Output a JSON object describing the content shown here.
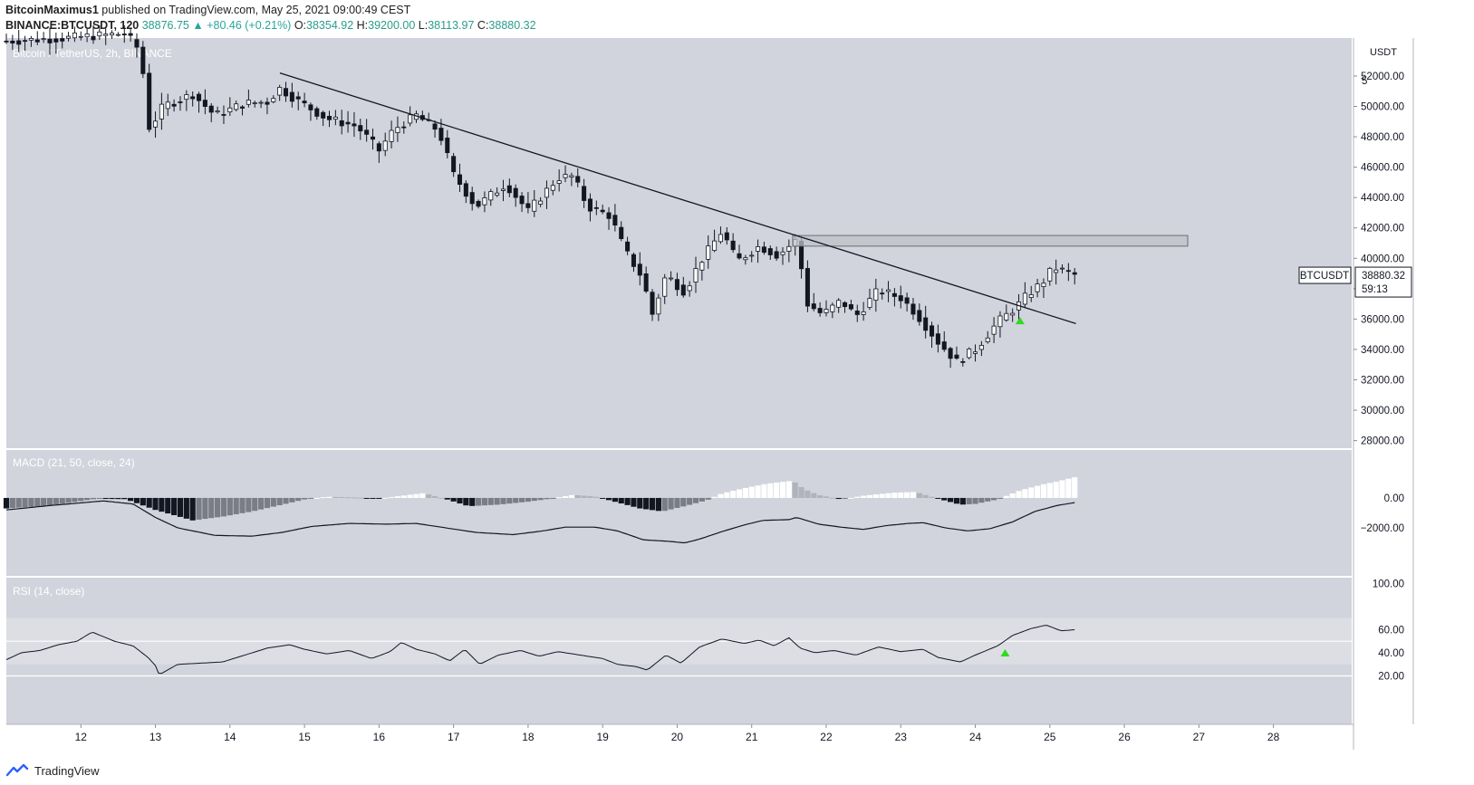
{
  "header": {
    "author": "BitcoinMaximus1",
    "published_text": "published on TradingView.com, May 25, 2021 09:00:49 CEST",
    "symbol_line": "BINANCE:BTCUSDT, 120",
    "last_price": "38876.75",
    "change_arrow": "▲",
    "change": "+80.46 (+0.21%)",
    "o_label": "O:",
    "o": "38354.92",
    "h_label": "H:",
    "h": "39200.00",
    "l_label": "L:",
    "l": "38113.97",
    "c_label": "C:",
    "c": "38880.32"
  },
  "footer": {
    "brand": "TradingView"
  },
  "colors": {
    "panel_bg": "#d1d4dc",
    "rsi_band": "#dcdee4",
    "candle_up": "#ffffff",
    "candle_down": "#131722",
    "green_marker": "#2edb1f",
    "hist_black": "#131722",
    "hist_gray": "#7a7d86",
    "hist_white": "#ffffff",
    "hist_lightgray": "#b0b3bb"
  },
  "chart_data": [
    {
      "type": "candlestick",
      "title": "Bitcoin / TetherUS, 2h, BINANCE",
      "currency": "USDT",
      "y_axis_top_label": "5",
      "price_range": [
        27500,
        54500
      ],
      "y_ticks": [
        28000,
        30000,
        32000,
        34000,
        36000,
        38000,
        40000,
        42000,
        44000,
        46000,
        48000,
        50000,
        52000
      ],
      "y_tick_labels": [
        "28000.00",
        "30000.00",
        "32000.00",
        "34000.00",
        "36000.00",
        "38000.00",
        "40000.00",
        "42000.00",
        "44000.00",
        "46000.00",
        "48000.00",
        "50000.00",
        "52000.00"
      ],
      "x_range": [
        11.0,
        29.05
      ],
      "x_ticks": [
        12,
        13,
        14,
        15,
        16,
        17,
        18,
        19,
        20,
        21,
        22,
        23,
        24,
        25,
        26,
        27,
        28
      ],
      "x_tick_labels": [
        "12",
        "13",
        "14",
        "15",
        "16",
        "17",
        "18",
        "19",
        "20",
        "21",
        "22",
        "23",
        "24",
        "25",
        "26",
        "27",
        "28"
      ],
      "last_price_label": {
        "symbol": "BTCUSDT",
        "price": "38880.32",
        "countdown": "59:13",
        "value": 38880.32
      },
      "trendline": {
        "start": [
          14.67,
          52200
        ],
        "end": [
          25.35,
          35700
        ]
      },
      "resistance_zone": {
        "x_start": 21.55,
        "x_end": 26.85,
        "y_low": 40800,
        "y_high": 41500
      },
      "breakout_marker": {
        "x": 24.6,
        "value": 35900
      },
      "candle_keypoints": [
        [
          11.0,
          54300
        ],
        [
          11.8,
          54500
        ],
        [
          12.6,
          54800
        ],
        [
          12.8,
          53600
        ],
        [
          12.92,
          48500
        ],
        [
          13.1,
          50000
        ],
        [
          13.5,
          50800
        ],
        [
          13.8,
          49400
        ],
        [
          14.2,
          50200
        ],
        [
          14.5,
          50300
        ],
        [
          14.67,
          51200
        ],
        [
          14.9,
          50400
        ],
        [
          15.3,
          49200
        ],
        [
          15.7,
          48700
        ],
        [
          16.0,
          47100
        ],
        [
          16.2,
          48500
        ],
        [
          16.5,
          49400
        ],
        [
          16.8,
          48400
        ],
        [
          17.0,
          45500
        ],
        [
          17.3,
          43400
        ],
        [
          17.7,
          44900
        ],
        [
          18.0,
          43100
        ],
        [
          18.4,
          45300
        ],
        [
          18.6,
          45400
        ],
        [
          18.8,
          43400
        ],
        [
          19.1,
          42800
        ],
        [
          19.3,
          40500
        ],
        [
          19.55,
          38600
        ],
        [
          19.65,
          36100
        ],
        [
          19.85,
          38900
        ],
        [
          20.1,
          37800
        ],
        [
          20.3,
          39700
        ],
        [
          20.6,
          41800
        ],
        [
          20.8,
          39800
        ],
        [
          21.1,
          40800
        ],
        [
          21.35,
          40200
        ],
        [
          21.6,
          41200
        ],
        [
          21.75,
          37000
        ],
        [
          21.95,
          36300
        ],
        [
          22.2,
          37200
        ],
        [
          22.4,
          36200
        ],
        [
          22.7,
          37900
        ],
        [
          23.0,
          37400
        ],
        [
          23.2,
          36400
        ],
        [
          23.5,
          34500
        ],
        [
          23.75,
          33200
        ],
        [
          24.0,
          34000
        ],
        [
          24.3,
          35800
        ],
        [
          24.55,
          36800
        ],
        [
          24.7,
          37600
        ],
        [
          24.9,
          38400
        ],
        [
          25.05,
          39400
        ],
        [
          25.35,
          38880
        ]
      ]
    },
    {
      "type": "histogram+line",
      "title": "MACD (21, 50, close, 24)",
      "value_range": [
        -5200,
        3200
      ],
      "y_ticks": [
        0,
        -2000
      ],
      "y_tick_labels": [
        "0.00",
        "−2000.00"
      ],
      "macd_keypoints": [
        [
          11.0,
          -800
        ],
        [
          11.6,
          -500
        ],
        [
          12.3,
          -200
        ],
        [
          12.7,
          -400
        ],
        [
          13.0,
          -1300
        ],
        [
          13.3,
          -2000
        ],
        [
          13.8,
          -2500
        ],
        [
          14.3,
          -2550
        ],
        [
          14.7,
          -2300
        ],
        [
          15.1,
          -1900
        ],
        [
          15.6,
          -1700
        ],
        [
          16.1,
          -1750
        ],
        [
          16.5,
          -1700
        ],
        [
          16.9,
          -2000
        ],
        [
          17.3,
          -2300
        ],
        [
          17.8,
          -2450
        ],
        [
          18.2,
          -2200
        ],
        [
          18.5,
          -1950
        ],
        [
          18.9,
          -1950
        ],
        [
          19.2,
          -2200
        ],
        [
          19.55,
          -2800
        ],
        [
          19.9,
          -2900
        ],
        [
          20.1,
          -3000
        ],
        [
          20.3,
          -2750
        ],
        [
          20.6,
          -2250
        ],
        [
          20.9,
          -1800
        ],
        [
          21.15,
          -1500
        ],
        [
          21.5,
          -1450
        ],
        [
          21.6,
          -1300
        ],
        [
          21.9,
          -1750
        ],
        [
          22.2,
          -1950
        ],
        [
          22.5,
          -2100
        ],
        [
          22.8,
          -1850
        ],
        [
          23.1,
          -1700
        ],
        [
          23.3,
          -1650
        ],
        [
          23.6,
          -2000
        ],
        [
          23.9,
          -2200
        ],
        [
          24.2,
          -2050
        ],
        [
          24.5,
          -1600
        ],
        [
          24.8,
          -900
        ],
        [
          25.1,
          -500
        ],
        [
          25.35,
          -300
        ]
      ],
      "histogram_keypoints": [
        [
          11.0,
          -700
        ],
        [
          11.6,
          -500
        ],
        [
          12.2,
          -60
        ],
        [
          12.6,
          -80
        ],
        [
          13.0,
          -800
        ],
        [
          13.5,
          -1500
        ],
        [
          13.9,
          -1250
        ],
        [
          14.3,
          -900
        ],
        [
          14.7,
          -450
        ],
        [
          15.0,
          -100
        ],
        [
          15.3,
          80
        ],
        [
          15.7,
          30
        ],
        [
          16.0,
          -40
        ],
        [
          16.4,
          200
        ],
        [
          16.6,
          320
        ],
        [
          16.9,
          -80
        ],
        [
          17.2,
          -550
        ],
        [
          17.6,
          -450
        ],
        [
          18.0,
          -250
        ],
        [
          18.3,
          -50
        ],
        [
          18.6,
          200
        ],
        [
          18.9,
          100
        ],
        [
          19.2,
          -300
        ],
        [
          19.5,
          -700
        ],
        [
          19.8,
          -900
        ],
        [
          20.1,
          -550
        ],
        [
          20.4,
          -150
        ],
        [
          20.6,
          300
        ],
        [
          20.9,
          650
        ],
        [
          21.2,
          950
        ],
        [
          21.55,
          1150
        ],
        [
          21.7,
          600
        ],
        [
          21.9,
          200
        ],
        [
          22.2,
          -100
        ],
        [
          22.5,
          150
        ],
        [
          22.9,
          350
        ],
        [
          23.2,
          400
        ],
        [
          23.5,
          -50
        ],
        [
          23.8,
          -450
        ],
        [
          24.0,
          -400
        ],
        [
          24.3,
          -100
        ],
        [
          24.6,
          500
        ],
        [
          24.9,
          900
        ],
        [
          25.1,
          1100
        ],
        [
          25.35,
          1400
        ]
      ]
    },
    {
      "type": "line",
      "title": "RSI (14, close)",
      "value_range": [
        0,
        105
      ],
      "y_ticks": [
        100,
        60,
        40,
        20
      ],
      "y_tick_labels": [
        "100.00",
        "60.00",
        "40.00",
        "20.00"
      ],
      "bands": [
        30,
        70
      ],
      "levels": [
        50,
        20
      ],
      "rsi_keypoints": [
        [
          11.0,
          34
        ],
        [
          11.2,
          40
        ],
        [
          11.45,
          42
        ],
        [
          11.7,
          47
        ],
        [
          11.95,
          50
        ],
        [
          12.15,
          58
        ],
        [
          12.45,
          50
        ],
        [
          12.7,
          46
        ],
        [
          12.9,
          36
        ],
        [
          13.0,
          29
        ],
        [
          13.05,
          21
        ],
        [
          13.3,
          30
        ],
        [
          13.6,
          31
        ],
        [
          13.9,
          32
        ],
        [
          14.2,
          38
        ],
        [
          14.5,
          44
        ],
        [
          14.8,
          47
        ],
        [
          15.0,
          43
        ],
        [
          15.3,
          39
        ],
        [
          15.6,
          42
        ],
        [
          15.9,
          35
        ],
        [
          16.15,
          41
        ],
        [
          16.3,
          49
        ],
        [
          16.5,
          43
        ],
        [
          16.75,
          39
        ],
        [
          16.95,
          33
        ],
        [
          17.15,
          43
        ],
        [
          17.35,
          30
        ],
        [
          17.6,
          38
        ],
        [
          17.9,
          42
        ],
        [
          18.15,
          37
        ],
        [
          18.4,
          41
        ],
        [
          18.7,
          38
        ],
        [
          19.0,
          35
        ],
        [
          19.2,
          30
        ],
        [
          19.45,
          28
        ],
        [
          19.6,
          25
        ],
        [
          19.85,
          38
        ],
        [
          20.05,
          31
        ],
        [
          20.3,
          45
        ],
        [
          20.6,
          52
        ],
        [
          20.9,
          48
        ],
        [
          21.1,
          51
        ],
        [
          21.3,
          46
        ],
        [
          21.5,
          53
        ],
        [
          21.65,
          44
        ],
        [
          21.85,
          40
        ],
        [
          22.1,
          42
        ],
        [
          22.4,
          38
        ],
        [
          22.7,
          45
        ],
        [
          23.0,
          41
        ],
        [
          23.3,
          43
        ],
        [
          23.5,
          36
        ],
        [
          23.8,
          32
        ],
        [
          24.0,
          38
        ],
        [
          24.3,
          46
        ],
        [
          24.5,
          55
        ],
        [
          24.75,
          61
        ],
        [
          24.95,
          64
        ],
        [
          25.15,
          59
        ],
        [
          25.35,
          60
        ]
      ],
      "marker": {
        "x": 24.4,
        "value": 40
      }
    }
  ]
}
